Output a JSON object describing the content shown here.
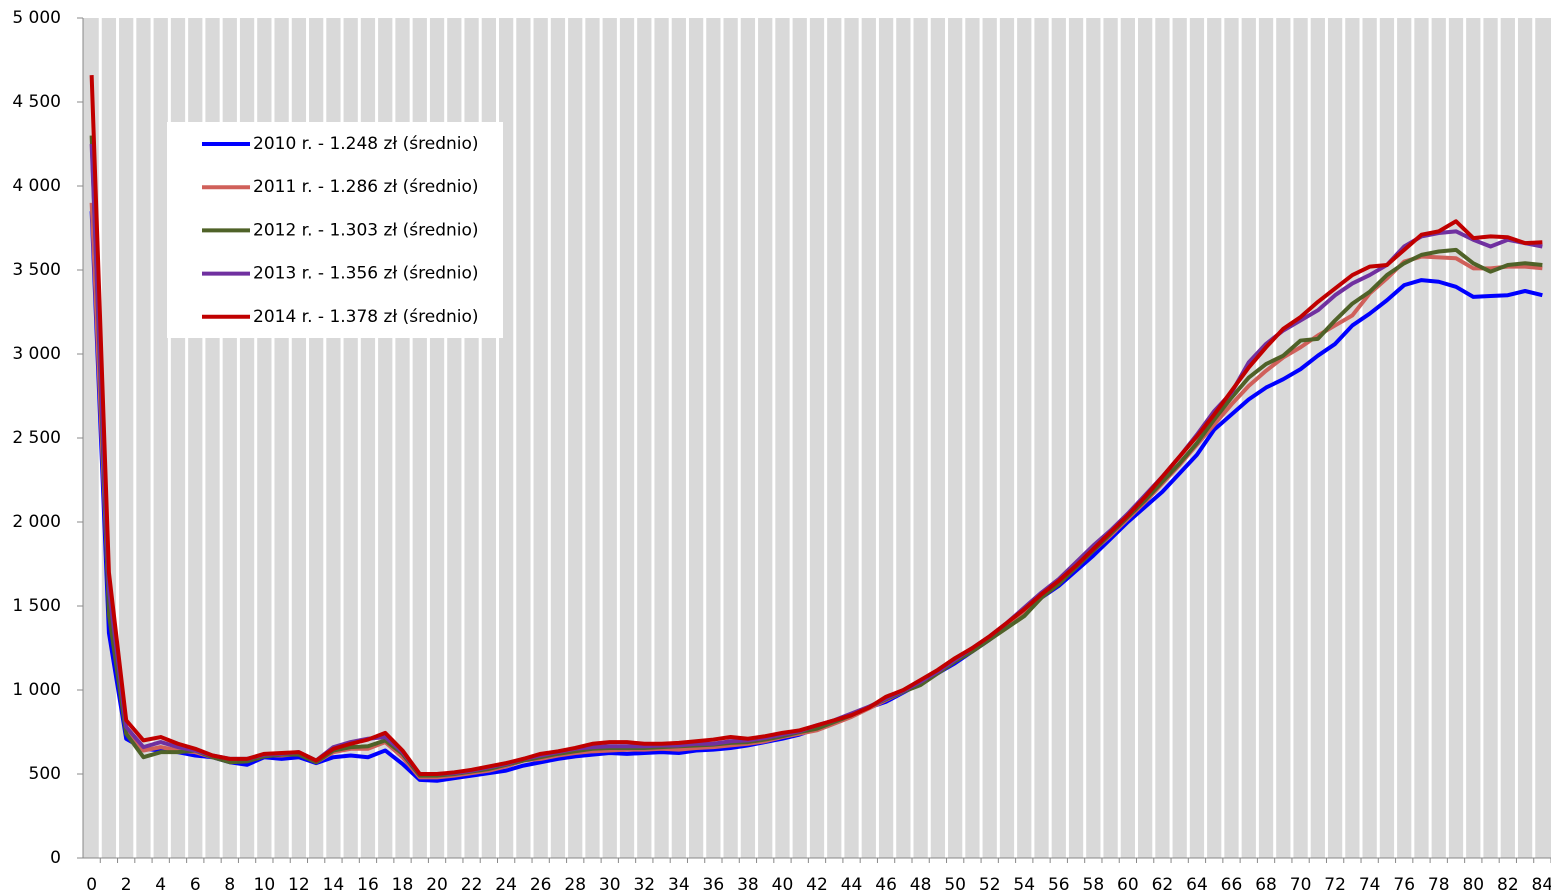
{
  "chart_data": {
    "type": "line",
    "categories": [
      "0",
      null,
      "2",
      null,
      "4",
      null,
      "6",
      null,
      "8",
      null,
      "10",
      null,
      "12",
      null,
      "14",
      null,
      "16",
      null,
      "18",
      null,
      "20",
      null,
      "22",
      null,
      "24",
      null,
      "26",
      null,
      "28",
      null,
      "30",
      null,
      "32",
      null,
      "34",
      null,
      "36",
      null,
      "38",
      null,
      "40",
      null,
      "42",
      null,
      "44",
      null,
      "46",
      null,
      "48",
      null,
      "50",
      null,
      "52",
      null,
      "54",
      null,
      "56",
      null,
      "58",
      null,
      "60",
      null,
      "62",
      null,
      "64",
      null,
      "66",
      null,
      "68",
      null,
      "70",
      null,
      "72",
      null,
      "74",
      null,
      "76",
      null,
      "78",
      null,
      "80",
      null,
      "82",
      null,
      "84"
    ],
    "ylim": [
      0,
      5000
    ],
    "yticks": [
      0,
      500,
      {
        "value": 1000,
        "label": "1 000"
      },
      {
        "value": 1500,
        "label": "1 500"
      },
      {
        "value": 2000,
        "label": "2 000"
      },
      {
        "value": 2500,
        "label": "2 500"
      },
      {
        "value": 3000,
        "label": "3 000"
      },
      {
        "value": 3500,
        "label": "3 500"
      },
      {
        "value": 4000,
        "label": "4 000"
      },
      {
        "value": 4500,
        "label": "4 500"
      },
      {
        "value": 5000,
        "label": "5 000"
      }
    ],
    "legend": "upper left",
    "series": [
      {
        "name": "2010 r. - 1.248 zł (średnio)",
        "color": "#0000ff",
        "values": [
          3850,
          1340,
          710,
          650,
          640,
          630,
          610,
          600,
          570,
          555,
          600,
          590,
          600,
          565,
          600,
          610,
          600,
          640,
          560,
          465,
          460,
          475,
          490,
          505,
          520,
          550,
          570,
          590,
          605,
          615,
          625,
          620,
          625,
          630,
          625,
          640,
          645,
          655,
          670,
          690,
          710,
          735,
          770,
          805,
          845,
          895,
          930,
          985,
          1040,
          1100,
          1160,
          1230,
          1300,
          1380,
          1460,
          1550,
          1620,
          1710,
          1800,
          1900,
          2000,
          2090,
          2180,
          2290,
          2400,
          2550,
          2640,
          2730,
          2800,
          2850,
          2910,
          2990,
          3060,
          3170,
          3240,
          3320,
          3410,
          3440,
          3430,
          3400,
          3340,
          3345,
          3350,
          3375,
          3350
        ]
      },
      {
        "name": "2011 r. - 1.286 zł (średnio)",
        "color": "#d0605a",
        "values": [
          3900,
          1500,
          760,
          640,
          660,
          640,
          630,
          600,
          580,
          580,
          610,
          610,
          620,
          570,
          630,
          650,
          650,
          690,
          600,
          480,
          480,
          490,
          505,
          520,
          545,
          580,
          590,
          610,
          625,
          635,
          640,
          645,
          645,
          650,
          645,
          655,
          660,
          670,
          680,
          695,
          720,
          740,
          760,
          800,
          840,
          890,
          940,
          990,
          1050,
          1110,
          1180,
          1240,
          1310,
          1390,
          1460,
          1550,
          1640,
          1730,
          1830,
          1920,
          2020,
          2120,
          2230,
          2340,
          2460,
          2580,
          2700,
          2810,
          2900,
          2980,
          3040,
          3110,
          3170,
          3230,
          3360,
          3450,
          3550,
          3580,
          3575,
          3570,
          3510,
          3510,
          3520,
          3520,
          3510
        ]
      },
      {
        "name": "2012 r. - 1.303 zł (średnio)",
        "color": "#4f6228",
        "values": [
          4300,
          1450,
          740,
          600,
          630,
          630,
          640,
          600,
          570,
          575,
          605,
          615,
          615,
          570,
          640,
          660,
          665,
          700,
          620,
          490,
          490,
          500,
          515,
          530,
          555,
          580,
          600,
          620,
          635,
          650,
          655,
          655,
          655,
          660,
          665,
          670,
          675,
          685,
          690,
          705,
          725,
          750,
          770,
          810,
          850,
          900,
          945,
          990,
          1030,
          1100,
          1170,
          1230,
          1300,
          1370,
          1440,
          1550,
          1630,
          1730,
          1830,
          1930,
          2030,
          2130,
          2240,
          2350,
          2470,
          2610,
          2740,
          2860,
          2940,
          2990,
          3080,
          3090,
          3200,
          3300,
          3370,
          3470,
          3540,
          3590,
          3610,
          3620,
          3540,
          3490,
          3530,
          3540,
          3530
        ]
      },
      {
        "name": "2013 r. - 1.356 zł (średnio)",
        "color": "#7030a0",
        "values": [
          4250,
          1600,
          780,
          660,
          690,
          660,
          640,
          610,
          590,
          590,
          615,
          620,
          630,
          580,
          660,
          690,
          710,
          720,
          630,
          500,
          500,
          505,
          520,
          540,
          560,
          590,
          610,
          630,
          650,
          660,
          665,
          665,
          665,
          670,
          670,
          680,
          680,
          695,
          700,
          715,
          735,
          755,
          790,
          820,
          860,
          900,
          950,
          995,
          1050,
          1110,
          1180,
          1250,
          1320,
          1400,
          1490,
          1580,
          1660,
          1760,
          1860,
          1950,
          2050,
          2160,
          2270,
          2390,
          2520,
          2660,
          2770,
          2950,
          3060,
          3140,
          3200,
          3260,
          3350,
          3420,
          3470,
          3530,
          3640,
          3700,
          3720,
          3730,
          3680,
          3640,
          3680,
          3660,
          3640
        ]
      },
      {
        "name": "2014 r. - 1.378 zł (średnio)",
        "color": "#c00000",
        "values": [
          4660,
          1700,
          820,
          700,
          720,
          680,
          650,
          610,
          590,
          590,
          620,
          625,
          630,
          580,
          650,
          680,
          705,
          745,
          640,
          500,
          500,
          510,
          525,
          545,
          565,
          590,
          620,
          635,
          655,
          680,
          690,
          690,
          680,
          680,
          685,
          695,
          705,
          720,
          710,
          725,
          745,
          760,
          790,
          820,
          850,
          895,
          960,
          1000,
          1060,
          1120,
          1190,
          1250,
          1320,
          1400,
          1480,
          1570,
          1650,
          1740,
          1840,
          1940,
          2040,
          2150,
          2270,
          2390,
          2510,
          2640,
          2780,
          2920,
          3040,
          3150,
          3220,
          3310,
          3390,
          3470,
          3520,
          3530,
          3620,
          3710,
          3730,
          3790,
          3690,
          3700,
          3695,
          3660,
          3665
        ]
      }
    ]
  }
}
